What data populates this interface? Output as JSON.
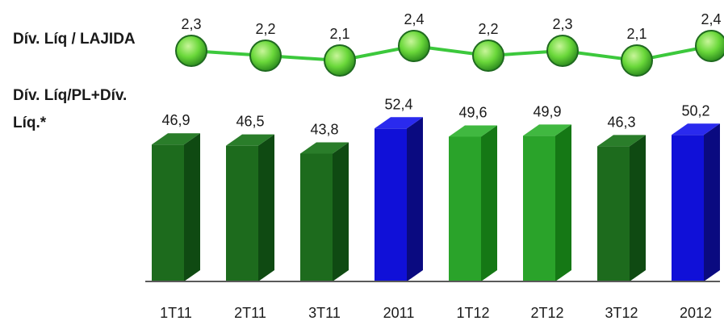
{
  "chart_data": {
    "type": "bar",
    "categories": [
      "1T11",
      "2T11",
      "3T11",
      "2011",
      "1T12",
      "2T12",
      "3T12",
      "2012"
    ],
    "line_series": {
      "name": "Dív. Líq / LAJIDA",
      "values": [
        "2,3",
        "2,2",
        "2,1",
        "2,4",
        "2,2",
        "2,3",
        "2,1",
        "2,4"
      ],
      "numeric": [
        2.3,
        2.2,
        2.1,
        2.4,
        2.2,
        2.3,
        2.1,
        2.4
      ]
    },
    "bar_series": {
      "name_line1": "Dív. Líq/PL+Dív.",
      "name_line2": "Líq.*",
      "values": [
        "46,9",
        "46,5",
        "43,8",
        "52,4",
        "49,6",
        "49,9",
        "46,3",
        "50,2"
      ],
      "numeric": [
        46.9,
        46.5,
        43.8,
        52.4,
        49.6,
        49.9,
        46.3,
        50.2
      ]
    },
    "bar_colors": [
      "dark-green",
      "dark-green",
      "dark-green",
      "blue",
      "light-green",
      "light-green",
      "dark-green",
      "blue"
    ],
    "palette": {
      "dark-green": {
        "front": "#1d6b1d",
        "side": "#0f4a12",
        "top": "#2a7d2a"
      },
      "light-green": {
        "front": "#2aa32a",
        "side": "#157815",
        "top": "#40b840"
      },
      "blue": {
        "front": "#1010d8",
        "side": "#0a0a80",
        "top": "#2a2aee"
      }
    },
    "line_color": "#3cc83c",
    "marker_color": "#6ad83a",
    "marker_stroke": "#1f6a1f",
    "baseline_color": "#5a5a5a"
  }
}
